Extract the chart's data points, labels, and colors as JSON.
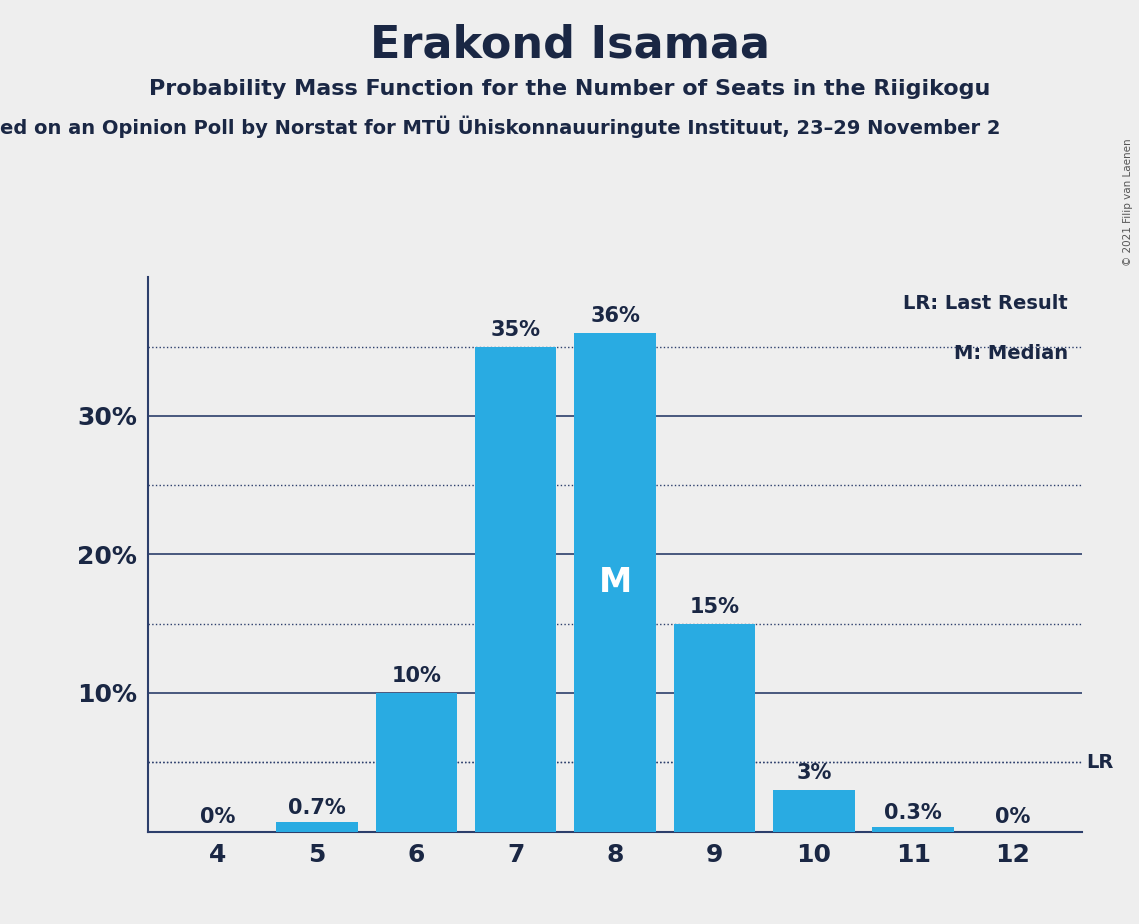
{
  "title": "Erakond Isamaa",
  "subtitle": "Probability Mass Function for the Number of Seats in the Riigikogu",
  "subtitle2": "ed on an Opinion Poll by Norstat for MTÜ Ühiskonnauuringute Instituut, 23–29 November 2",
  "copyright": "© 2021 Filip van Laenen",
  "seats": [
    4,
    5,
    6,
    7,
    8,
    9,
    10,
    11,
    12
  ],
  "probabilities": [
    0.0,
    0.7,
    10.0,
    35.0,
    36.0,
    15.0,
    3.0,
    0.3,
    0.0
  ],
  "labels": [
    "0%",
    "0.7%",
    "10%",
    "35%",
    "36%",
    "15%",
    "3%",
    "0.3%",
    "0%"
  ],
  "bar_color": "#29abe2",
  "median_seat": 8,
  "lr_value": 5.0,
  "background_color": "#eeeeee",
  "ylim": [
    0,
    40
  ],
  "shown_yticks": [
    10,
    20,
    30
  ],
  "shown_ytick_labels": [
    "10%",
    "20%",
    "30%"
  ],
  "dotted_line_yticks": [
    5,
    15,
    25,
    35
  ],
  "solid_line_color": "#2c3e6b",
  "dotted_line_color": "#2c3e6b",
  "title_fontsize": 32,
  "subtitle_fontsize": 16,
  "subtitle2_fontsize": 14,
  "tick_color": "#1a2744",
  "label_fontsize": 15
}
